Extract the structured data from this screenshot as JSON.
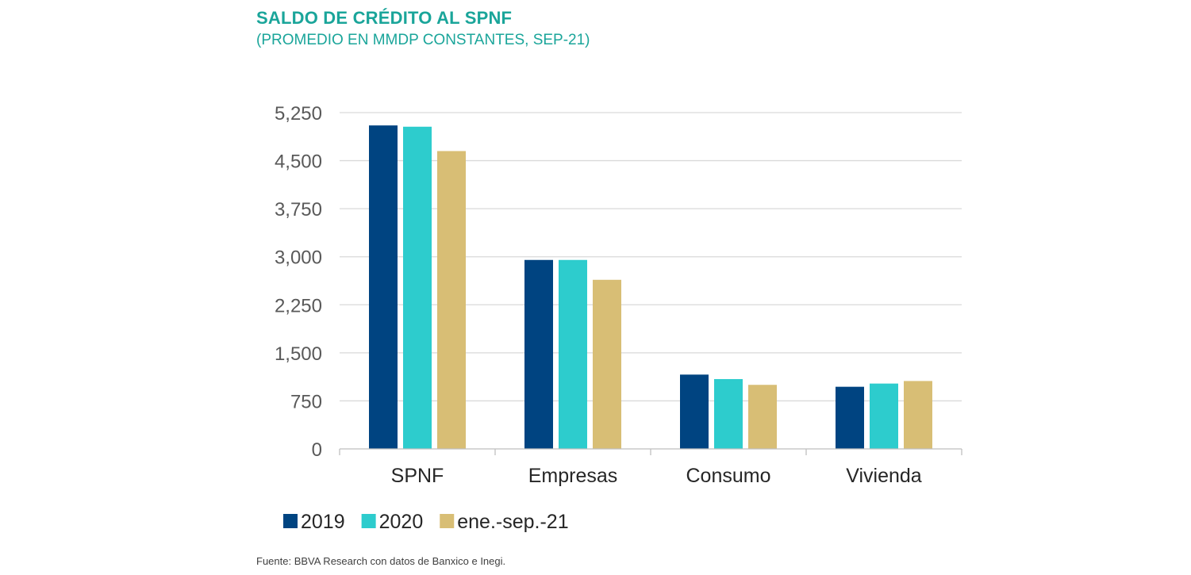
{
  "chart_data": {
    "type": "bar",
    "title": "SALDO DE CRÉDITO AL SPNF",
    "subtitle": "(PROMEDIO EN MMDP CONSTANTES, SEP-21)",
    "categories": [
      "SPNF",
      "Empresas",
      "Consumo",
      "Vivienda"
    ],
    "series": [
      {
        "name": "2019",
        "color": "#004481",
        "values": [
          5050,
          2950,
          1160,
          970
        ]
      },
      {
        "name": "2020",
        "color": "#2dcccd",
        "values": [
          5030,
          2950,
          1090,
          1020
        ]
      },
      {
        "name": "ene.-sep.-21",
        "color": "#d8be75",
        "values": [
          4650,
          2640,
          1000,
          1060
        ]
      }
    ],
    "ylim": [
      0,
      5250
    ],
    "yticks": [
      0,
      750,
      1500,
      2250,
      3000,
      3750,
      4500,
      5250
    ],
    "ytick_labels": [
      "0",
      "750",
      "1,500",
      "2,250",
      "3,000",
      "3,750",
      "4,500",
      "5,250"
    ],
    "grid": true,
    "legend_position": "bottom-left"
  },
  "source": "Fuente: BBVA Research con datos de Banxico e Inegi."
}
